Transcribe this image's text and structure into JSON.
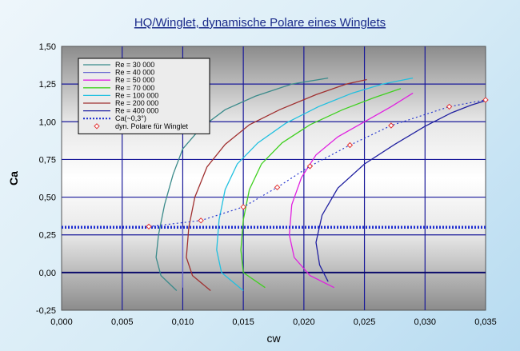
{
  "chart_data": {
    "type": "line",
    "title": "HQ/Winglet, dynamische Polare eines Winglets",
    "xlabel": "cw",
    "ylabel": "Ca",
    "xlim": [
      0,
      0.035
    ],
    "ylim": [
      -0.25,
      1.5
    ],
    "xticks": [
      "0,000",
      "0,005",
      "0,010",
      "0,015",
      "0,020",
      "0,025",
      "0,030",
      "0,035"
    ],
    "yticks": [
      "-0,25",
      "0,00",
      "0,25",
      "0,50",
      "0,75",
      "1,00",
      "1,25",
      "1,50"
    ],
    "grid": true,
    "legend_position": "top-left",
    "series": [
      {
        "name": "Re =   30 000",
        "color": "#3a8a8a",
        "x": [
          0.0095,
          0.0082,
          0.0078,
          0.008,
          0.0085,
          0.0092,
          0.01,
          0.0115,
          0.0135,
          0.016,
          0.019,
          0.022
        ],
        "y": [
          -0.12,
          -0.02,
          0.1,
          0.25,
          0.45,
          0.65,
          0.82,
          0.96,
          1.08,
          1.17,
          1.25,
          1.29
        ]
      },
      {
        "name": "Re =   40 000",
        "color": "#6a6ad0",
        "x": [
          0.01,
          0.01,
          0.01
        ],
        "y": [
          -0.1,
          0.1,
          0.3
        ]
      },
      {
        "name": "Re =   50 000",
        "color": "#e020e0",
        "x": [
          0.0225,
          0.0205,
          0.0192,
          0.0188,
          0.019,
          0.0198,
          0.021,
          0.0228,
          0.025,
          0.0272,
          0.029
        ],
        "y": [
          -0.1,
          -0.02,
          0.1,
          0.25,
          0.45,
          0.63,
          0.78,
          0.9,
          1.0,
          1.1,
          1.19
        ]
      },
      {
        "name": "Re =   70 000",
        "color": "#40d020",
        "x": [
          0.0168,
          0.015,
          0.0148,
          0.015,
          0.0155,
          0.0165,
          0.0182,
          0.0205,
          0.0232,
          0.0258,
          0.028
        ],
        "y": [
          -0.1,
          0.0,
          0.15,
          0.35,
          0.55,
          0.72,
          0.86,
          0.98,
          1.08,
          1.16,
          1.22
        ]
      },
      {
        "name": "Re = 100 000",
        "color": "#20c0e0",
        "x": [
          0.015,
          0.0132,
          0.0128,
          0.013,
          0.0135,
          0.0145,
          0.0162,
          0.0185,
          0.0212,
          0.024,
          0.0265,
          0.029
        ],
        "y": [
          -0.12,
          0.0,
          0.15,
          0.35,
          0.55,
          0.72,
          0.86,
          0.99,
          1.1,
          1.19,
          1.25,
          1.29
        ]
      },
      {
        "name": "Re = 200 000",
        "color": "#a03030",
        "x": [
          0.0123,
          0.0108,
          0.0103,
          0.0105,
          0.011,
          0.012,
          0.0135,
          0.0155,
          0.018,
          0.021,
          0.0235,
          0.0252
        ],
        "y": [
          -0.12,
          -0.02,
          0.1,
          0.3,
          0.5,
          0.7,
          0.85,
          0.98,
          1.08,
          1.18,
          1.25,
          1.28
        ]
      },
      {
        "name": "Re = 400 000",
        "color": "#2020a0",
        "x": [
          0.022,
          0.0213,
          0.021,
          0.0215,
          0.0228,
          0.025,
          0.0275,
          0.03,
          0.0322,
          0.0338,
          0.035
        ],
        "y": [
          -0.06,
          0.05,
          0.2,
          0.38,
          0.56,
          0.72,
          0.85,
          0.97,
          1.06,
          1.11,
          1.14
        ]
      },
      {
        "name": "Ca(~0,3°)",
        "color": "#1a2ad0",
        "x": [
          0.0,
          0.035
        ],
        "y": [
          0.3,
          0.3
        ]
      },
      {
        "name": "dyn. Polare für Winglet",
        "color": "#e03030",
        "x": [
          0.0072,
          0.0115,
          0.015,
          0.0178,
          0.0205,
          0.0238,
          0.0272,
          0.032,
          0.035
        ],
        "y": [
          0.305,
          0.345,
          0.435,
          0.565,
          0.705,
          0.845,
          0.975,
          1.1,
          1.145
        ]
      }
    ]
  }
}
